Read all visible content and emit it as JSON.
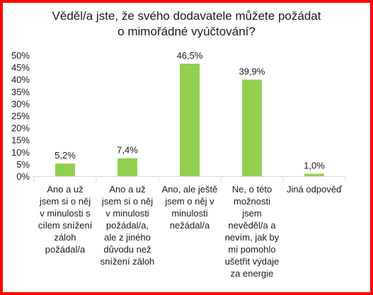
{
  "chart_data": {
    "type": "bar",
    "title_lines": [
      "Věděl/a jste, že svého dodavatele můžete požádat",
      "o mimořádné vyúčtování?"
    ],
    "categories": [
      "Ano a už jsem si o něj v minulosti s cílem snížení záloh požádal/a",
      "Ano a už jsem si o něj v minulosti požádal/a, ale z jiného důvodu než snížení záloh",
      "Ano, ale ještě jsem o něj v minulosti nežádal/a",
      "Ne, o této možnosti jsem nevěděl/a a nevím, jak by mi pomohlo ušetřit výdaje za energie",
      "Jiná odpověď"
    ],
    "category_lines": [
      [
        "Ano a už",
        "jsem si o něj",
        "v minulosti s",
        "cílem snížení",
        "záloh",
        "požádal/a"
      ],
      [
        "Ano a už",
        "jsem si o něj",
        "v minulosti",
        "požádal/a,",
        "ale z jiného",
        "důvodu než",
        "snížení záloh"
      ],
      [
        "Ano, ale ještě",
        "jsem o něj v",
        "minulosti",
        "nežádal/a"
      ],
      [
        "Ne, o této",
        "možnosti",
        "jsem",
        "nevěděl/a a",
        "nevím, jak by",
        "mi pomohlo",
        "ušetřit výdaje",
        "za energie"
      ],
      [
        "Jiná odpověď"
      ]
    ],
    "values": [
      5.2,
      7.4,
      46.5,
      39.9,
      1.0
    ],
    "data_labels": [
      "5,2%",
      "7,4%",
      "46,5%",
      "39,9%",
      "1,0%"
    ],
    "y_ticks": [
      "0%",
      "5%",
      "10%",
      "15%",
      "20%",
      "25%",
      "30%",
      "35%",
      "40%",
      "45%",
      "50%"
    ],
    "ylim": [
      0,
      50
    ],
    "grid": false,
    "legend": "none",
    "bar_color": "#92d050",
    "frame_color": "#ff0000"
  }
}
